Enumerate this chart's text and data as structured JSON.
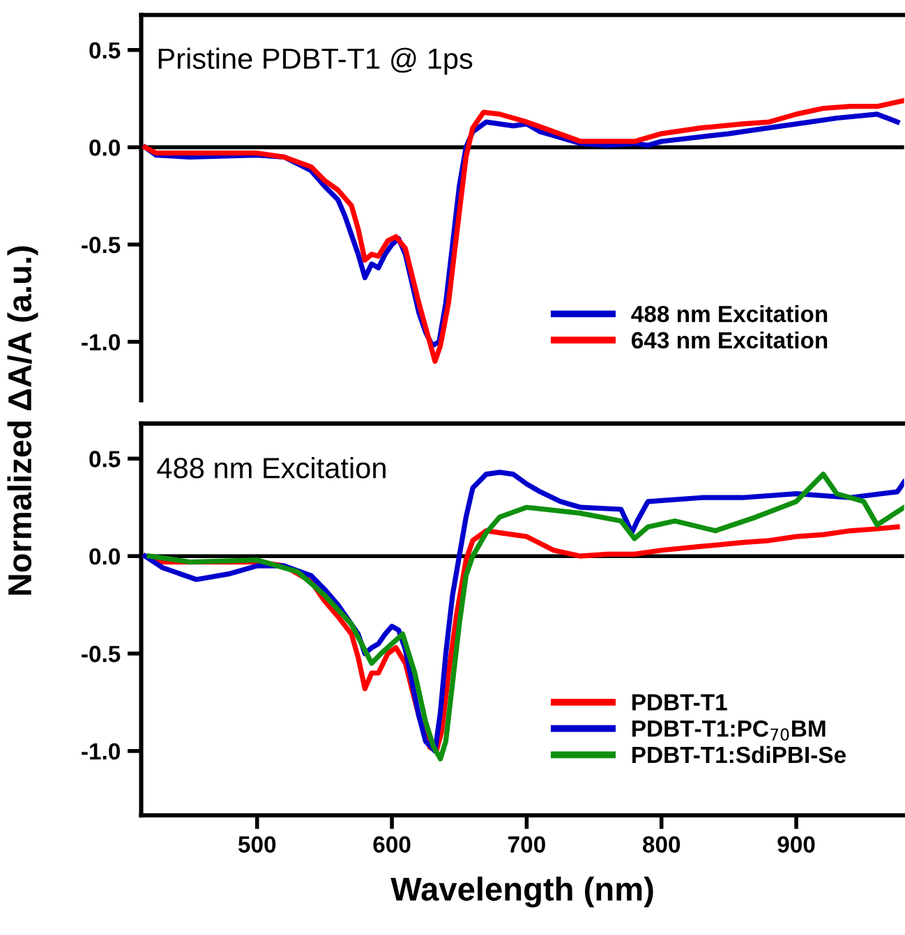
{
  "chart_data": [
    {
      "type": "line",
      "ylabel": "Normalized ΔA/A (a.u.)",
      "annotations": [
        "Pristine PDBT-T1 @ 1ps"
      ],
      "xlim": [
        414,
        980
      ],
      "ylim": [
        -1.3,
        0.68
      ],
      "yticks": [
        {
          "value": 0.5,
          "label": "0.5"
        },
        {
          "value": 0,
          "label": "0.0"
        },
        {
          "value": -0.5,
          "label": "-0.5"
        },
        {
          "value": -1.0,
          "label": "-1.0"
        }
      ],
      "tick_labels": "y",
      "legend": "bottom right",
      "grid": false,
      "marker": "none",
      "line_style": "solid",
      "ref_lines": [
        {
          "axis": "y",
          "value": 0,
          "label": null,
          "color": "#000000"
        }
      ],
      "series": [
        {
          "name": "488 nm Excitation",
          "color": "#0000cc",
          "x": [
            417,
            425,
            450,
            500,
            520,
            540,
            550,
            560,
            565,
            570,
            575,
            580,
            585,
            590,
            595,
            600,
            605,
            610,
            615,
            620,
            625,
            630,
            635,
            640,
            645,
            650,
            655,
            660,
            670,
            680,
            690,
            700,
            710,
            720,
            730,
            740,
            760,
            780,
            790,
            800,
            850,
            880,
            910,
            930,
            960,
            975
          ],
          "values": [
            0,
            -0.04,
            -0.05,
            -0.04,
            -0.05,
            -0.12,
            -0.2,
            -0.27,
            -0.35,
            -0.45,
            -0.55,
            -0.67,
            -0.6,
            -0.62,
            -0.55,
            -0.5,
            -0.47,
            -0.55,
            -0.7,
            -0.85,
            -0.95,
            -1.02,
            -1.0,
            -0.8,
            -0.5,
            -0.2,
            0.0,
            0.08,
            0.13,
            0.12,
            0.11,
            0.12,
            0.08,
            0.06,
            0.04,
            0.02,
            0.01,
            0.02,
            0.01,
            0.03,
            0.07,
            0.1,
            0.13,
            0.15,
            0.17,
            0.13
          ]
        },
        {
          "name": "643 nm Excitation",
          "color": "#ff0000",
          "x": [
            417,
            425,
            500,
            520,
            540,
            550,
            560,
            570,
            575,
            580,
            585,
            590,
            597,
            603,
            610,
            620,
            628,
            632,
            636,
            642,
            648,
            655,
            660,
            668,
            680,
            700,
            720,
            740,
            760,
            780,
            800,
            830,
            860,
            880,
            900,
            920,
            940,
            960,
            980
          ],
          "values": [
            0,
            -0.03,
            -0.03,
            -0.05,
            -0.1,
            -0.17,
            -0.22,
            -0.3,
            -0.42,
            -0.58,
            -0.55,
            -0.56,
            -0.48,
            -0.46,
            -0.52,
            -0.8,
            -1.0,
            -1.1,
            -1.02,
            -0.8,
            -0.45,
            -0.05,
            0.1,
            0.18,
            0.17,
            0.13,
            0.08,
            0.03,
            0.03,
            0.03,
            0.07,
            0.1,
            0.12,
            0.13,
            0.17,
            0.2,
            0.21,
            0.21,
            0.24
          ]
        }
      ]
    },
    {
      "type": "line",
      "xlabel": "Wavelength (nm)",
      "annotations": [
        "488 nm Excitation"
      ],
      "xlim": [
        414,
        980
      ],
      "ylim": [
        -1.33,
        0.68
      ],
      "xticks": [
        500,
        600,
        700,
        800,
        900
      ],
      "yticks": [
        {
          "value": 0.5,
          "label": "0.5"
        },
        {
          "value": 0,
          "label": "0.0"
        },
        {
          "value": -0.5,
          "label": "-0.5"
        },
        {
          "value": -1.0,
          "label": "-1.0"
        }
      ],
      "legend": "bottom right",
      "grid": false,
      "marker": "none",
      "line_style": "solid",
      "ref_lines": [
        {
          "axis": "y",
          "value": 0,
          "label": null,
          "color": "#000000"
        }
      ],
      "series": [
        {
          "name": "PDBT-T1",
          "color": "#ff0000",
          "x": [
            417,
            425,
            500,
            520,
            540,
            550,
            560,
            570,
            575,
            580,
            585,
            590,
            597,
            603,
            610,
            620,
            628,
            633,
            637,
            642,
            648,
            655,
            660,
            670,
            680,
            700,
            720,
            740,
            760,
            780,
            800,
            830,
            860,
            880,
            900,
            920,
            940,
            960,
            975
          ],
          "values": [
            0,
            -0.03,
            -0.03,
            -0.05,
            -0.13,
            -0.23,
            -0.31,
            -0.4,
            -0.52,
            -0.68,
            -0.6,
            -0.6,
            -0.5,
            -0.47,
            -0.55,
            -0.82,
            -0.98,
            -1.0,
            -0.9,
            -0.6,
            -0.3,
            -0.02,
            0.08,
            0.13,
            0.12,
            0.1,
            0.03,
            0.0,
            0.01,
            0.01,
            0.03,
            0.05,
            0.07,
            0.08,
            0.1,
            0.11,
            0.13,
            0.14,
            0.15
          ]
        },
        {
          "name": "PDBT-T1:PC$_{70}$BM",
          "color": "#0000cc",
          "x": [
            417,
            430,
            455,
            480,
            500,
            520,
            540,
            550,
            560,
            570,
            575,
            580,
            585,
            590,
            595,
            600,
            605,
            610,
            615,
            620,
            625,
            632,
            636,
            640,
            645,
            650,
            655,
            660,
            670,
            680,
            690,
            700,
            710,
            725,
            740,
            770,
            778,
            782,
            790,
            830,
            860,
            900,
            940,
            975,
            980
          ],
          "values": [
            0,
            -0.06,
            -0.12,
            -0.09,
            -0.05,
            -0.05,
            -0.1,
            -0.17,
            -0.25,
            -0.35,
            -0.4,
            -0.5,
            -0.47,
            -0.45,
            -0.4,
            -0.36,
            -0.38,
            -0.48,
            -0.65,
            -0.82,
            -0.95,
            -1.0,
            -0.8,
            -0.5,
            -0.2,
            0.0,
            0.2,
            0.35,
            0.42,
            0.43,
            0.42,
            0.37,
            0.33,
            0.28,
            0.25,
            0.24,
            0.12,
            0.18,
            0.28,
            0.3,
            0.3,
            0.32,
            0.3,
            0.33,
            0.38
          ]
        },
        {
          "name": "PDBT-T1:SdiPBI-Se",
          "color": "#109010",
          "x": [
            420,
            450,
            500,
            530,
            550,
            570,
            585,
            592,
            600,
            608,
            617,
            625,
            631,
            636,
            640,
            645,
            650,
            655,
            660,
            670,
            680,
            700,
            740,
            770,
            780,
            790,
            810,
            840,
            870,
            900,
            920,
            930,
            950,
            960,
            980
          ],
          "values": [
            0,
            -0.03,
            -0.02,
            -0.08,
            -0.2,
            -0.35,
            -0.55,
            -0.5,
            -0.45,
            -0.4,
            -0.6,
            -0.85,
            -0.98,
            -1.04,
            -0.95,
            -0.65,
            -0.35,
            -0.1,
            0.0,
            0.12,
            0.2,
            0.25,
            0.22,
            0.18,
            0.09,
            0.15,
            0.18,
            0.13,
            0.2,
            0.28,
            0.42,
            0.32,
            0.28,
            0.16,
            0.25
          ]
        }
      ]
    }
  ]
}
